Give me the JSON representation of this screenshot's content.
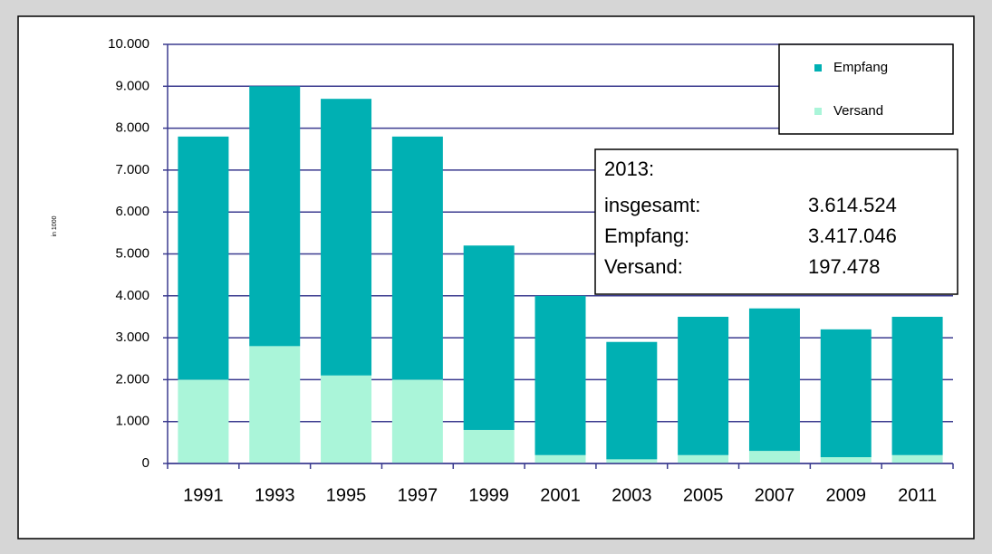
{
  "chart_data": {
    "type": "stacked_bar",
    "y_label": "in 1000",
    "categories": [
      "1991",
      "1993",
      "1995",
      "1997",
      "1999",
      "2001",
      "2003",
      "2005",
      "2007",
      "2009",
      "2011"
    ],
    "series": [
      {
        "name": "Versand",
        "color": "#aaf5d9",
        "values": [
          2000,
          2800,
          2100,
          2000,
          800,
          200,
          100,
          200,
          300,
          150,
          200
        ]
      },
      {
        "name": "Empfang",
        "color": "#00b0b3",
        "values": [
          5800,
          6200,
          6600,
          5800,
          4400,
          3800,
          2800,
          3300,
          3400,
          3050,
          3300
        ]
      }
    ],
    "ylim": [
      0,
      10000
    ],
    "yticks": [
      0,
      {
        "value": 1000,
        "label": "1.000"
      },
      {
        "value": 2000,
        "label": "2.000"
      },
      {
        "value": 3000,
        "label": "3.000"
      },
      {
        "value": 4000,
        "label": "4.000"
      },
      {
        "value": 5000,
        "label": "5.000"
      },
      {
        "value": 6000,
        "label": "6.000"
      },
      {
        "value": 7000,
        "label": "7.000"
      },
      {
        "value": 8000,
        "label": "8.000"
      },
      {
        "value": 9000,
        "label": "9.000"
      },
      {
        "value": 10000,
        "label": "10.000"
      }
    ],
    "grid": true,
    "grid_color": "#3b3b8f",
    "legend": "top-right",
    "annotation": {
      "title": "2013:",
      "rows": [
        {
          "label": "insgesamt:",
          "value": "3.614.524"
        },
        {
          "label": "Empfang:",
          "value": "3.417.046"
        },
        {
          "label": "Versand:",
          "value": "197.478"
        }
      ]
    }
  }
}
